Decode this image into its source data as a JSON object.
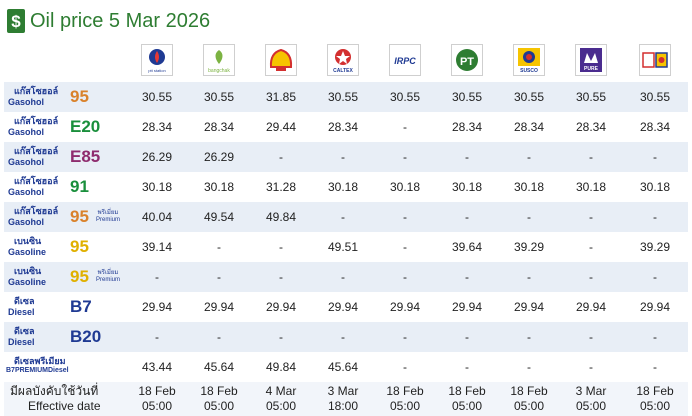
{
  "page": {
    "title": "Oil price 5 Mar 2026"
  },
  "brands": [
    {
      "name": "ptt",
      "text": "ptt station"
    },
    {
      "name": "bangchak",
      "text": "bangchak"
    },
    {
      "name": "shell",
      "text": ""
    },
    {
      "name": "caltex",
      "text": "CALTEX"
    },
    {
      "name": "irpc",
      "text": "IRPC"
    },
    {
      "name": "pt",
      "text": "PT"
    },
    {
      "name": "susco",
      "text": "SUSCO"
    },
    {
      "name": "pure",
      "text": "PURE"
    },
    {
      "name": "other",
      "text": ""
    }
  ],
  "rows": [
    {
      "th": "แก๊สโซฮอล์",
      "en": "Gasohol",
      "oct": "95",
      "oct_color": "#d9822b",
      "prem": "",
      "shade": true,
      "values": [
        "30.55",
        "30.55",
        "31.85",
        "30.55",
        "30.55",
        "30.55",
        "30.55",
        "30.55",
        "30.55"
      ]
    },
    {
      "th": "แก๊สโซฮอล์",
      "en": "Gasohol",
      "oct": "E20",
      "oct_color": "#1a8f3c",
      "prem": "",
      "shade": false,
      "values": [
        "28.34",
        "28.34",
        "29.44",
        "28.34",
        "-",
        "28.34",
        "28.34",
        "28.34",
        "28.34"
      ]
    },
    {
      "th": "แก๊สโซฮอล์",
      "en": "Gasohol",
      "oct": "E85",
      "oct_color": "#8e2c6e",
      "prem": "",
      "shade": true,
      "values": [
        "26.29",
        "26.29",
        "-",
        "-",
        "-",
        "-",
        "-",
        "-",
        "-"
      ]
    },
    {
      "th": "แก๊สโซฮอล์",
      "en": "Gasohol",
      "oct": "91",
      "oct_color": "#1a8f3c",
      "prem": "",
      "shade": false,
      "values": [
        "30.18",
        "30.18",
        "31.28",
        "30.18",
        "30.18",
        "30.18",
        "30.18",
        "30.18",
        "30.18"
      ]
    },
    {
      "th": "แก๊สโซฮอล์",
      "en": "Gasohol",
      "oct": "95",
      "oct_color": "#d9822b",
      "prem": "พรีเมี่ยม Premium",
      "shade": true,
      "values": [
        "40.04",
        "49.54",
        "49.84",
        "-",
        "-",
        "-",
        "-",
        "-",
        "-"
      ]
    },
    {
      "th": "เบนซิน",
      "en": "Gasoline",
      "oct": "95",
      "oct_color": "#e0b000",
      "prem": "",
      "shade": false,
      "values": [
        "39.14",
        "-",
        "-",
        "49.51",
        "-",
        "39.64",
        "39.29",
        "-",
        "39.29"
      ]
    },
    {
      "th": "เบนซิน",
      "en": "Gasoline",
      "oct": "95",
      "oct_color": "#e0b000",
      "prem": "พรีเมี่ยม Premium",
      "shade": true,
      "values": [
        "-",
        "-",
        "-",
        "-",
        "-",
        "-",
        "-",
        "-",
        "-"
      ]
    },
    {
      "th": "ดีเซล",
      "en": "Diesel",
      "oct": "B7",
      "oct_color": "#1f3a93",
      "prem": "",
      "shade": false,
      "values": [
        "29.94",
        "29.94",
        "29.94",
        "29.94",
        "29.94",
        "29.94",
        "29.94",
        "29.94",
        "29.94"
      ]
    },
    {
      "th": "ดีเซล",
      "en": "Diesel",
      "oct": "B20",
      "oct_color": "#1f3a93",
      "prem": "",
      "shade": true,
      "values": [
        "-",
        "-",
        "-",
        "-",
        "-",
        "-",
        "-",
        "-",
        "-"
      ]
    },
    {
      "th": "ดีเซลพรีเมียม",
      "en": "B7PREMIUMDiesel",
      "oct": "",
      "oct_color": "#1f3a93",
      "prem": "",
      "shade": false,
      "values": [
        "43.44",
        "45.64",
        "49.84",
        "45.64",
        "-",
        "-",
        "-",
        "-",
        "-"
      ]
    }
  ],
  "footer": {
    "label_th": "มีผลบังคับใช้วันที่",
    "label_en": "Effective date",
    "dates": [
      "18 Feb",
      "18 Feb",
      "4 Mar",
      "3 Mar",
      "18 Feb",
      "18 Feb",
      "18 Feb",
      "3 Mar",
      "18 Feb"
    ],
    "times": [
      "05:00",
      "05:00",
      "05:00",
      "18:00",
      "05:00",
      "05:00",
      "05:00",
      "05:00",
      "05:00"
    ]
  }
}
